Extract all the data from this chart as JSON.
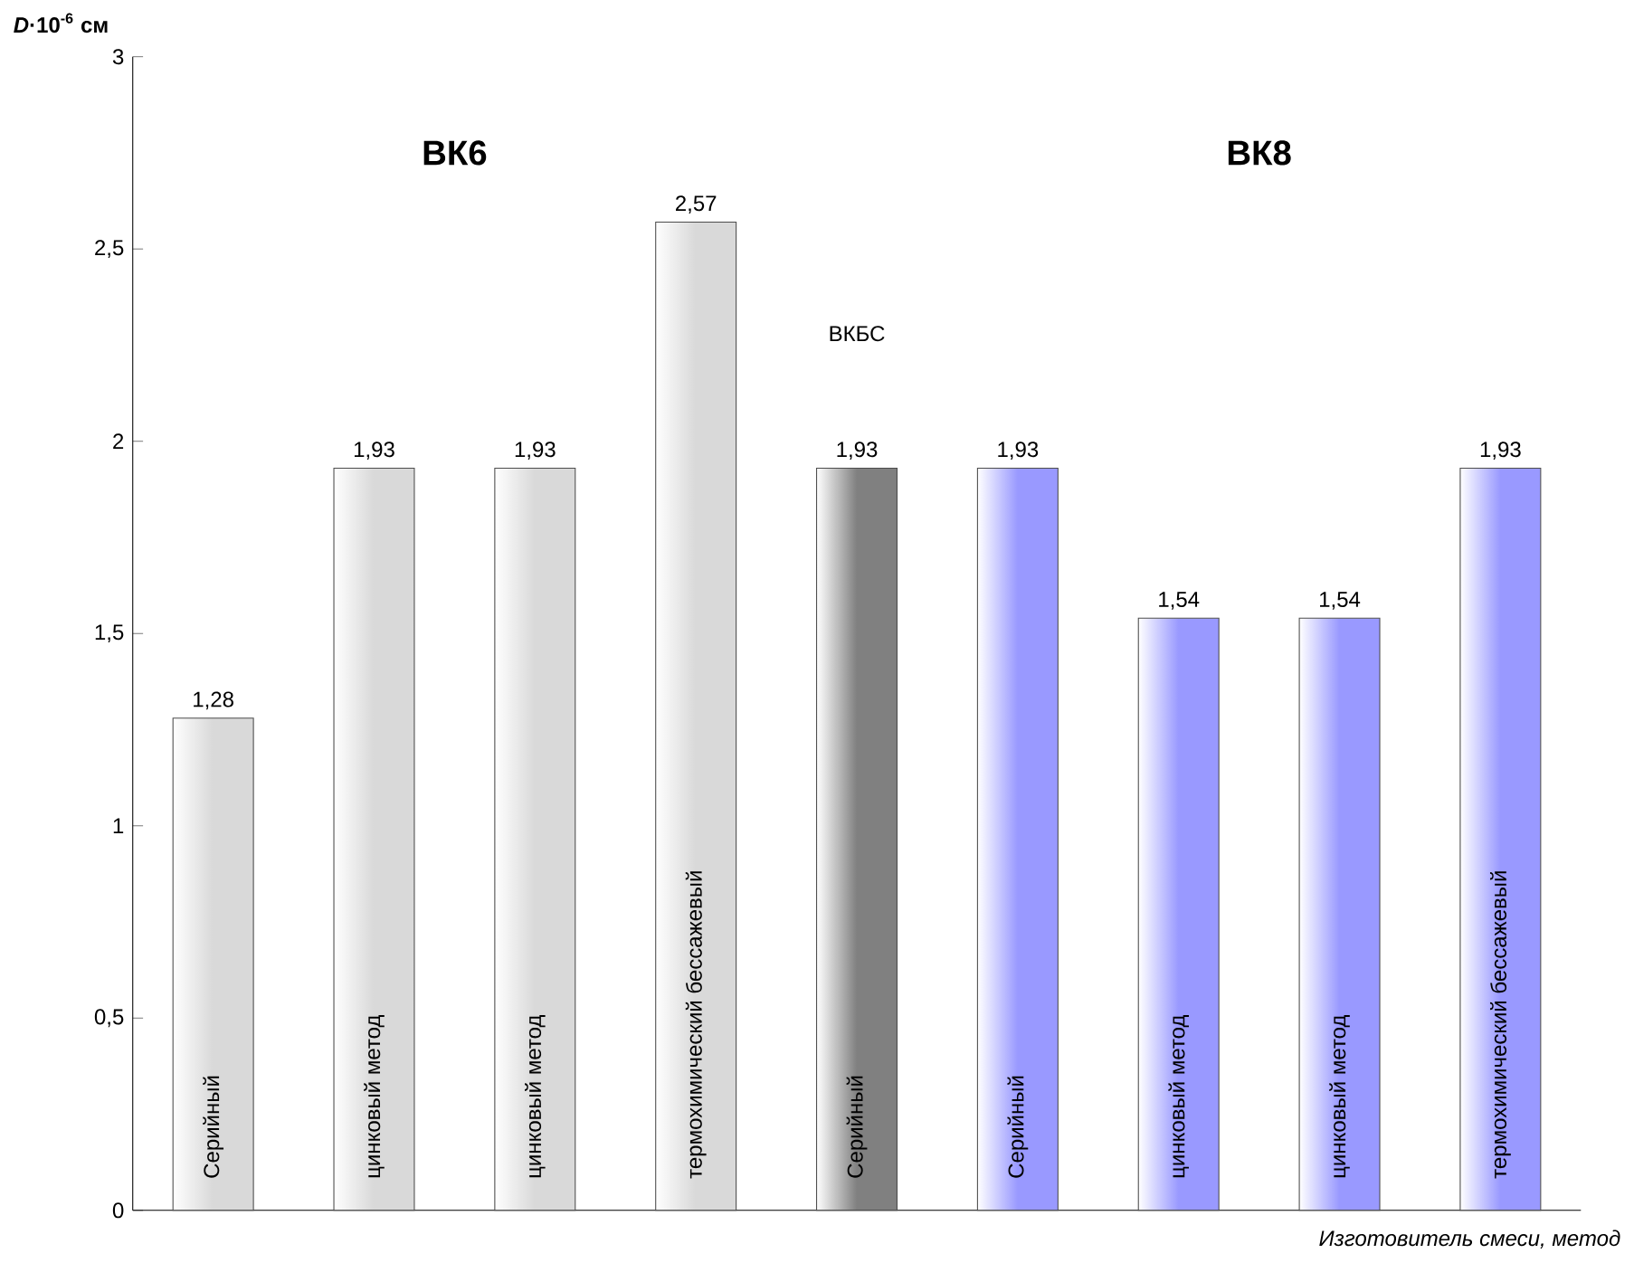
{
  "chart_data": {
    "type": "bar",
    "ylabel": "*D*·10$^{-6}$ см",
    "xlabel": "Изготовитель смеси, метод",
    "categories": [
      "Серийный",
      "цинковый метод",
      "цинковый метод",
      "термохимический бессажевый",
      "Серийный",
      "Серийный",
      "цинковый метод",
      "цинковый метод",
      "термохимический бессажевый"
    ],
    "values": [
      1.28,
      1.93,
      1.93,
      2.57,
      1.93,
      1.93,
      1.54,
      1.54,
      1.93
    ],
    "value_labels": [
      "1,28",
      "1,93",
      "1,93",
      "2,57",
      "1,93",
      "1,93",
      "1,54",
      "1,54",
      "1,93"
    ],
    "colors": [
      "#d9d9d9",
      "#d9d9d9",
      "#d9d9d9",
      "#d9d9d9",
      "#808080",
      "#9999ff",
      "#9999ff",
      "#9999ff",
      "#9999ff"
    ],
    "ylim": [
      0,
      3
    ],
    "yticks": [
      0,
      {
        "value": 0.5,
        "label": "0,5"
      },
      1,
      {
        "value": 1.5,
        "label": "1,5"
      },
      2,
      {
        "value": 2.5,
        "label": "2,5"
      },
      3
    ],
    "annotations": [
      "ВК6",
      "ВК8",
      "ВКБС"
    ],
    "grid": false
  }
}
